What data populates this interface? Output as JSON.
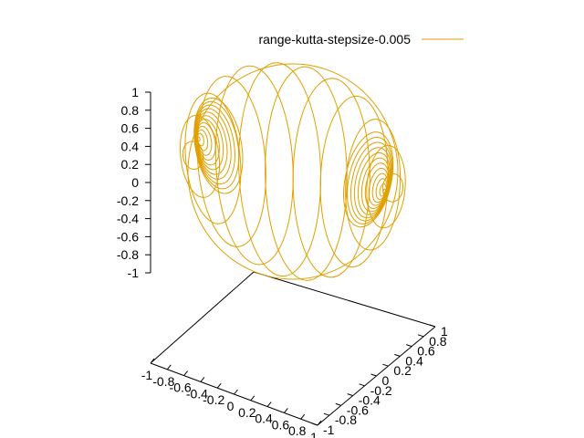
{
  "chart_data": {
    "type": "line",
    "title": "",
    "legend_position": "top-right",
    "color": "#e0a000",
    "series": [
      {
        "name": "range-kutta-stepsize-0.005",
        "description_points": []
      }
    ],
    "zlim": [
      -1,
      1
    ],
    "xlim": [
      -1,
      1
    ],
    "ylim": [
      -1,
      1
    ],
    "z_ticks": [
      "1",
      "0.8",
      "0.6",
      "0.4",
      "0.2",
      "0",
      "-0.2",
      "-0.4",
      "-0.6",
      "-0.8",
      "-1"
    ],
    "x_ticks": [
      "-1",
      "-0.8",
      "-0.6",
      "-0.4",
      "-0.2",
      "0",
      "0.2",
      "0.4",
      "0.6",
      "0.8",
      "1"
    ],
    "y_ticks": [
      "-1",
      "-0.8",
      "-0.6",
      "-0.4",
      "-0.2",
      "0",
      "0.2",
      "0.4",
      "0.6",
      "0.8",
      "1"
    ],
    "grid": false
  }
}
